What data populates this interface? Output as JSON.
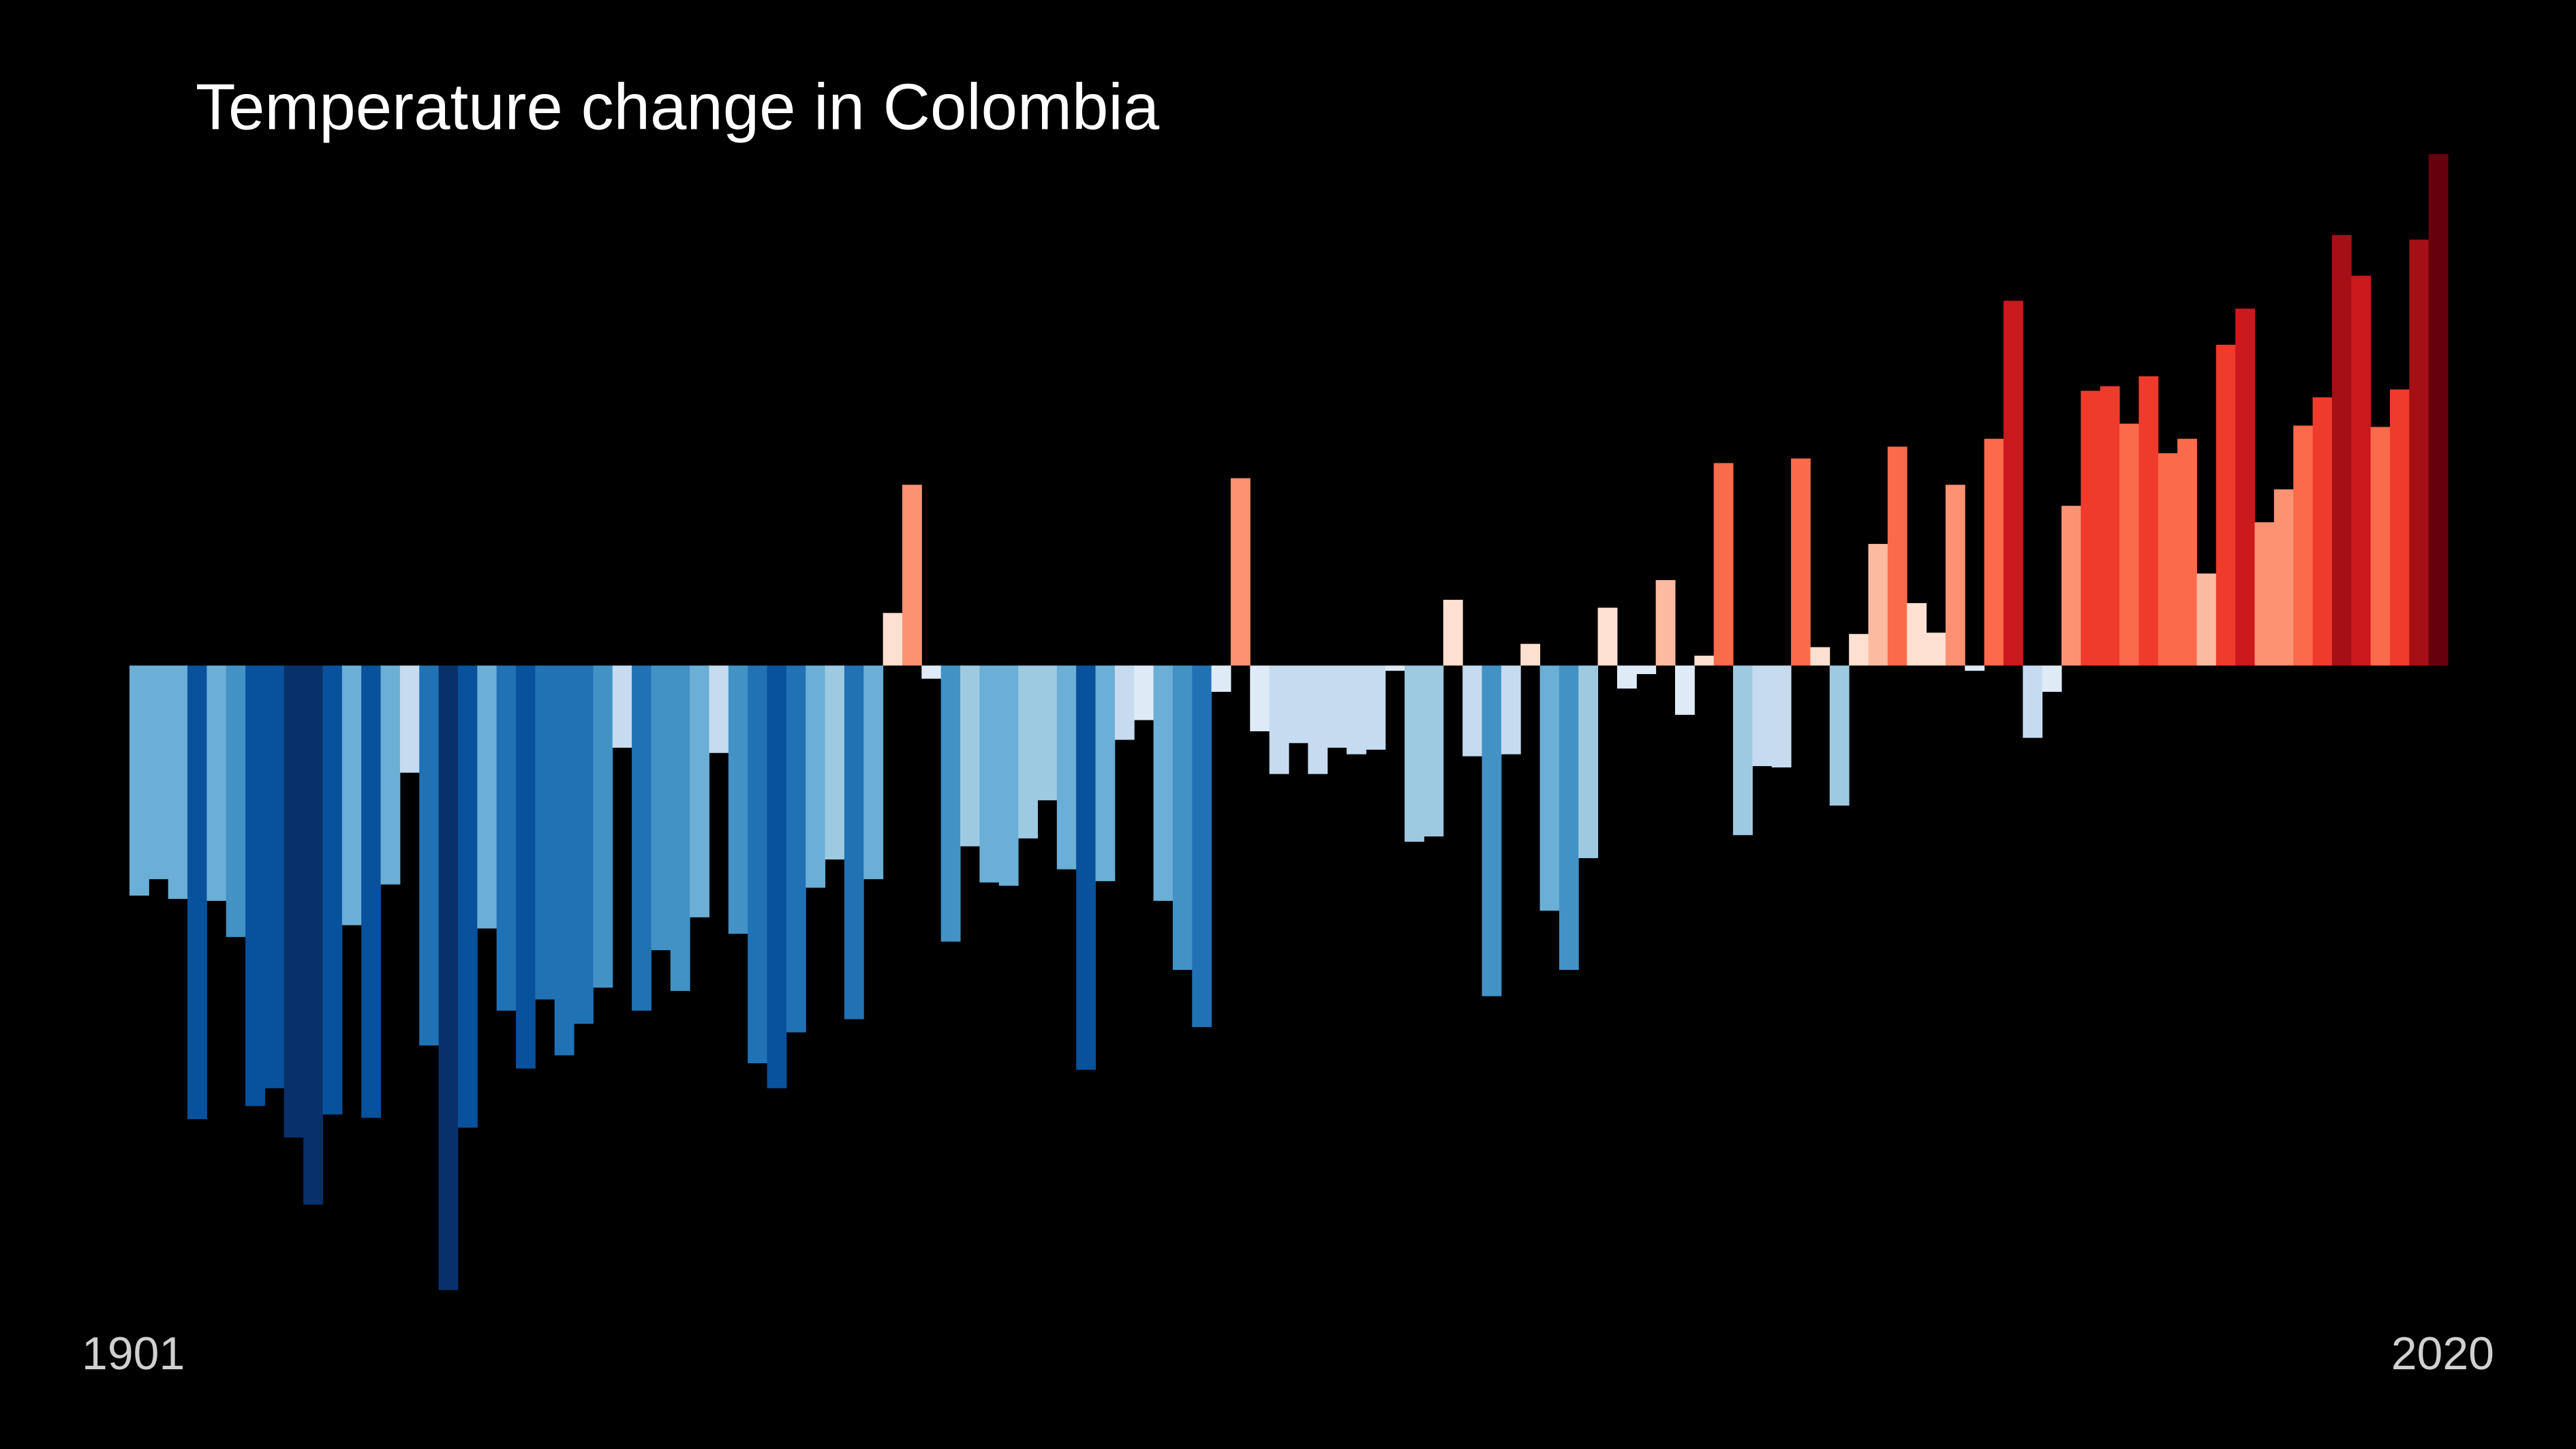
{
  "chart_data": {
    "type": "bar",
    "title": "Temperature change in Colombia",
    "categories": [
      "1901",
      null,
      null,
      null,
      null,
      null,
      null,
      null,
      null,
      null,
      null,
      null,
      null,
      null,
      null,
      null,
      null,
      null,
      null,
      null,
      null,
      null,
      null,
      null,
      null,
      null,
      null,
      null,
      null,
      null,
      null,
      null,
      null,
      null,
      null,
      null,
      null,
      null,
      null,
      null,
      null,
      null,
      null,
      null,
      null,
      null,
      null,
      null,
      null,
      null,
      null,
      null,
      null,
      null,
      null,
      null,
      null,
      null,
      null,
      null,
      null,
      null,
      null,
      null,
      null,
      null,
      null,
      null,
      null,
      null,
      null,
      null,
      null,
      null,
      null,
      null,
      null,
      null,
      null,
      null,
      null,
      null,
      null,
      null,
      null,
      null,
      null,
      null,
      null,
      null,
      null,
      null,
      null,
      null,
      null,
      null,
      null,
      null,
      null,
      null,
      null,
      null,
      null,
      null,
      null,
      null,
      null,
      null,
      null,
      null,
      null,
      null,
      null,
      null,
      null,
      null,
      null,
      null,
      null,
      "2020"
    ],
    "values": [
      -0.35,
      -0.325,
      -0.355,
      -0.69,
      -0.358,
      -0.413,
      -0.67,
      -0.643,
      -0.718,
      -0.82,
      -0.683,
      -0.395,
      -0.688,
      -0.333,
      -0.163,
      -0.578,
      -0.95,
      -0.703,
      -0.4,
      -0.525,
      -0.613,
      -0.508,
      -0.593,
      -0.545,
      -0.49,
      -0.125,
      -0.525,
      -0.433,
      -0.495,
      -0.383,
      -0.133,
      -0.408,
      -0.605,
      -0.643,
      -0.558,
      -0.338,
      -0.295,
      -0.538,
      -0.325,
      0.08,
      0.275,
      -0.02,
      -0.42,
      -0.275,
      -0.33,
      -0.335,
      -0.263,
      -0.205,
      -0.31,
      -0.615,
      -0.328,
      -0.113,
      -0.083,
      -0.358,
      -0.463,
      -0.55,
      -0.04,
      0.285,
      -0.1,
      -0.165,
      -0.118,
      -0.165,
      -0.125,
      -0.135,
      -0.128,
      -0.008,
      -0.268,
      -0.26,
      0.1,
      -0.138,
      -0.503,
      -0.135,
      0.033,
      -0.373,
      -0.463,
      -0.293,
      0.088,
      -0.035,
      -0.013,
      0.13,
      -0.075,
      0.015,
      0.308,
      -0.258,
      -0.153,
      -0.155,
      0.315,
      0.028,
      -0.213,
      0.048,
      0.185,
      0.333,
      0.095,
      0.05,
      0.275,
      -0.008,
      0.345,
      0.555,
      -0.11,
      -0.04,
      0.243,
      0.418,
      0.425,
      0.368,
      0.44,
      0.323,
      0.345,
      0.14,
      0.488,
      0.543,
      0.218,
      0.268,
      0.365,
      0.408,
      0.655,
      0.593,
      0.363,
      0.42,
      0.648,
      0.778
    ],
    "ylim": [
      -1,
      1
    ],
    "colormap": [
      "#08306b",
      "#08519c",
      "#2171b5",
      "#4292c6",
      "#6baed6",
      "#9ecae1",
      "#c6dbef",
      "#deebf7",
      "#fee0d2",
      "#fcbba1",
      "#fc9272",
      "#fb6a4a",
      "#ef3b2c",
      "#cb181d",
      "#a50f15",
      "#67000d"
    ]
  }
}
